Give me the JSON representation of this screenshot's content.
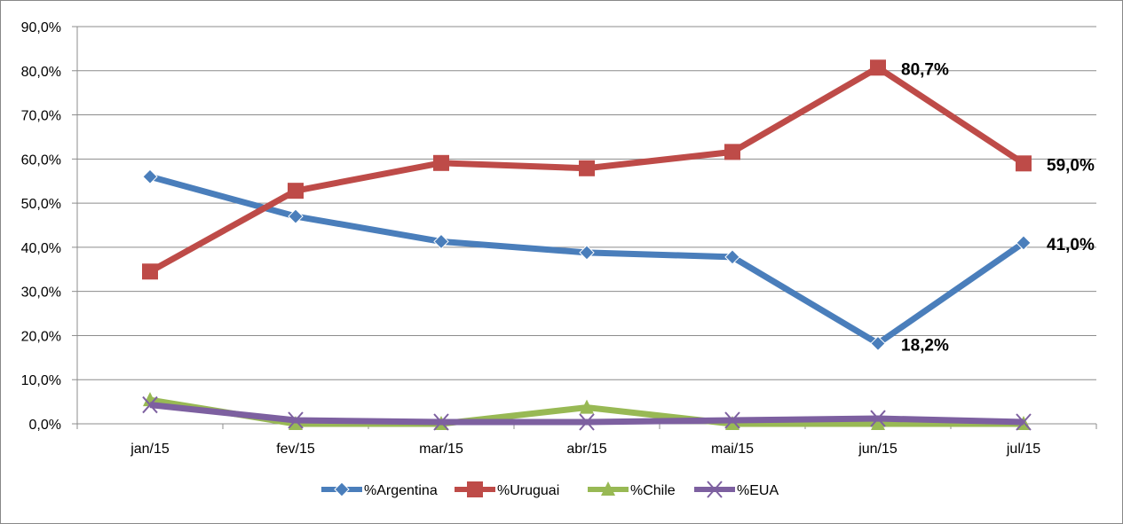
{
  "chart_data": {
    "type": "line",
    "title": "",
    "xlabel": "",
    "ylabel": "",
    "ylim": [
      0,
      90
    ],
    "yticks": [
      "0,0%",
      "10,0%",
      "20,0%",
      "30,0%",
      "40,0%",
      "50,0%",
      "60,0%",
      "70,0%",
      "80,0%",
      "90,0%"
    ],
    "categories": [
      "jan/15",
      "fev/15",
      "mar/15",
      "abr/15",
      "mai/15",
      "jun/15",
      "jul/15"
    ],
    "grid": true,
    "legend_position": "bottom",
    "series": [
      {
        "name": "%Argentina",
        "color": "#4a7ebb",
        "marker": "diamond",
        "values": [
          56.0,
          47.0,
          41.3,
          38.8,
          37.8,
          18.2,
          41.0
        ],
        "labels": {
          "5": "18,2%",
          "6": "41,0%"
        }
      },
      {
        "name": "%Uruguai",
        "color": "#be4b48",
        "marker": "square",
        "values": [
          34.5,
          52.8,
          59.1,
          57.9,
          61.6,
          80.7,
          59.0
        ],
        "labels": {
          "5": "80,7%",
          "6": "59,0%"
        }
      },
      {
        "name": "%Chile",
        "color": "#98b954",
        "marker": "triangle",
        "values": [
          5.4,
          0.0,
          0.0,
          3.7,
          0.0,
          0.0,
          0.0
        ],
        "labels": {}
      },
      {
        "name": "%EUA",
        "color": "#7d60a0",
        "marker": "x",
        "values": [
          4.3,
          0.8,
          0.4,
          0.4,
          0.8,
          1.2,
          0.4
        ],
        "labels": {}
      }
    ]
  }
}
